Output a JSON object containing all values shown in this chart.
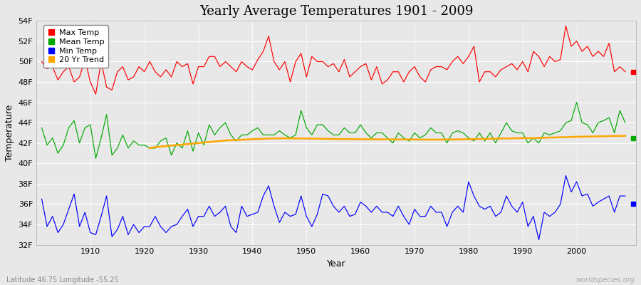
{
  "title": "Yearly Average Temperatures 1901 - 2009",
  "xlabel": "Year",
  "ylabel": "Temperature",
  "footnote_left": "Latitude 46.75 Longitude -55.25",
  "footnote_right": "worldspecies.org",
  "years": [
    1901,
    1902,
    1903,
    1904,
    1905,
    1906,
    1907,
    1908,
    1909,
    1910,
    1911,
    1912,
    1913,
    1914,
    1915,
    1916,
    1917,
    1918,
    1919,
    1920,
    1921,
    1922,
    1923,
    1924,
    1925,
    1926,
    1927,
    1928,
    1929,
    1930,
    1931,
    1932,
    1933,
    1934,
    1935,
    1936,
    1937,
    1938,
    1939,
    1940,
    1941,
    1942,
    1943,
    1944,
    1945,
    1946,
    1947,
    1948,
    1949,
    1950,
    1951,
    1952,
    1953,
    1954,
    1955,
    1956,
    1957,
    1958,
    1959,
    1960,
    1961,
    1962,
    1963,
    1964,
    1965,
    1966,
    1967,
    1968,
    1969,
    1970,
    1971,
    1972,
    1973,
    1974,
    1975,
    1976,
    1977,
    1978,
    1979,
    1980,
    1981,
    1982,
    1983,
    1984,
    1985,
    1986,
    1987,
    1988,
    1989,
    1990,
    1991,
    1992,
    1993,
    1994,
    1995,
    1996,
    1997,
    1998,
    1999,
    2000,
    2001,
    2002,
    2003,
    2004,
    2005,
    2006,
    2007,
    2008,
    2009
  ],
  "max_temp": [
    50.0,
    49.3,
    49.5,
    48.2,
    49.0,
    49.5,
    48.0,
    48.5,
    50.2,
    48.0,
    46.8,
    50.0,
    47.5,
    47.2,
    49.0,
    49.5,
    48.2,
    48.5,
    49.5,
    49.0,
    50.0,
    49.0,
    48.5,
    49.2,
    48.5,
    50.0,
    49.5,
    49.8,
    47.8,
    49.5,
    49.5,
    50.5,
    50.5,
    49.5,
    50.0,
    49.5,
    49.0,
    50.0,
    49.5,
    49.2,
    50.2,
    51.0,
    52.5,
    50.0,
    49.2,
    50.0,
    48.0,
    50.0,
    50.8,
    48.5,
    50.5,
    50.0,
    50.0,
    49.5,
    49.8,
    49.0,
    50.2,
    48.5,
    49.0,
    49.5,
    49.8,
    48.2,
    49.5,
    47.8,
    48.2,
    49.0,
    49.0,
    48.0,
    49.0,
    49.5,
    48.5,
    48.0,
    49.2,
    49.5,
    49.5,
    49.2,
    50.0,
    50.5,
    49.8,
    50.5,
    51.5,
    48.0,
    49.0,
    49.0,
    48.5,
    49.2,
    49.5,
    49.8,
    49.2,
    50.0,
    49.0,
    51.0,
    50.5,
    49.5,
    50.5,
    50.0,
    50.2,
    53.5,
    51.5,
    52.0,
    51.0,
    51.5,
    50.5,
    51.0,
    50.5,
    51.8,
    49.0,
    49.5,
    49.0
  ],
  "mean_temp": [
    43.5,
    41.8,
    42.5,
    41.0,
    41.8,
    43.5,
    44.2,
    42.0,
    43.5,
    43.8,
    40.5,
    42.5,
    44.8,
    40.8,
    41.5,
    42.8,
    41.5,
    42.2,
    41.8,
    41.8,
    41.5,
    41.5,
    42.2,
    42.5,
    40.8,
    42.0,
    41.5,
    43.2,
    41.2,
    43.0,
    41.8,
    43.8,
    42.8,
    43.5,
    44.0,
    42.8,
    42.2,
    42.8,
    42.8,
    43.2,
    43.5,
    42.8,
    42.8,
    42.8,
    43.2,
    42.8,
    42.5,
    42.8,
    45.2,
    43.5,
    42.8,
    43.8,
    43.8,
    43.2,
    42.8,
    42.8,
    43.5,
    43.0,
    43.0,
    43.8,
    43.0,
    42.5,
    43.0,
    43.0,
    42.5,
    42.0,
    43.0,
    42.5,
    42.2,
    43.0,
    42.5,
    42.8,
    43.5,
    43.0,
    43.0,
    42.0,
    43.0,
    43.2,
    43.0,
    42.5,
    42.2,
    43.0,
    42.2,
    43.0,
    42.0,
    43.0,
    44.0,
    43.2,
    43.0,
    43.0,
    42.0,
    42.5,
    42.0,
    43.0,
    42.8,
    43.0,
    43.2,
    44.0,
    44.2,
    46.0,
    44.0,
    43.8,
    43.0,
    44.0,
    44.2,
    44.5,
    43.0,
    45.2,
    44.0
  ],
  "min_temp": [
    36.5,
    33.8,
    34.8,
    33.2,
    34.0,
    35.5,
    37.0,
    33.8,
    35.2,
    33.2,
    33.0,
    34.8,
    36.8,
    32.8,
    33.5,
    34.8,
    33.0,
    34.0,
    33.2,
    33.8,
    33.8,
    34.8,
    33.8,
    33.2,
    33.8,
    34.0,
    34.8,
    35.5,
    33.8,
    34.8,
    34.8,
    35.8,
    34.8,
    35.2,
    35.8,
    33.8,
    33.2,
    35.8,
    34.8,
    35.0,
    35.2,
    36.8,
    37.8,
    35.8,
    34.2,
    35.2,
    34.8,
    35.0,
    36.8,
    34.8,
    33.8,
    35.0,
    37.0,
    36.8,
    35.8,
    35.2,
    35.8,
    34.8,
    35.0,
    36.2,
    35.8,
    35.2,
    35.8,
    35.2,
    35.2,
    34.8,
    35.8,
    34.8,
    34.0,
    35.5,
    34.8,
    34.8,
    35.8,
    35.2,
    35.2,
    33.8,
    35.2,
    35.8,
    35.2,
    38.2,
    36.8,
    35.8,
    35.5,
    35.8,
    34.8,
    35.2,
    36.8,
    35.8,
    35.2,
    36.2,
    33.8,
    34.8,
    32.5,
    35.2,
    34.8,
    35.2,
    36.0,
    38.8,
    37.2,
    38.2,
    36.8,
    37.0,
    35.8,
    36.2,
    36.5,
    36.8,
    35.2,
    36.8,
    36.8
  ],
  "trend_years": [
    1921,
    1922,
    1923,
    1924,
    1925,
    1926,
    1927,
    1928,
    1929,
    1930,
    1931,
    1932,
    1933,
    1934,
    1935,
    1936,
    1937,
    1938,
    1939,
    1940,
    1941,
    1942,
    1943,
    1944,
    1945,
    1946,
    1947,
    1948,
    1949,
    1950,
    1951,
    1952,
    1953,
    1954,
    1955,
    1956,
    1957,
    1958,
    1959,
    1960,
    1961,
    1962,
    1963,
    1964,
    1965,
    1966,
    1967,
    1968,
    1969,
    1970,
    1971,
    1972,
    1973,
    1974,
    1975,
    1976,
    1977,
    1978,
    1979,
    1980,
    1981,
    1982,
    1983,
    1984,
    1985,
    1986,
    1987,
    1988,
    1989,
    1990,
    1991,
    1992,
    1993,
    1994,
    1995,
    1996,
    1997,
    1998,
    1999,
    2000,
    2001,
    2002,
    2003,
    2004,
    2005,
    2006,
    2007,
    2008,
    2009
  ],
  "trend": [
    41.5,
    41.6,
    41.65,
    41.7,
    41.75,
    41.8,
    41.85,
    41.9,
    41.95,
    42.0,
    42.05,
    42.1,
    42.15,
    42.2,
    42.25,
    42.28,
    42.3,
    42.32,
    42.35,
    42.38,
    42.4,
    42.42,
    42.44,
    42.45,
    42.46,
    42.47,
    42.46,
    42.45,
    42.45,
    42.44,
    42.43,
    42.43,
    42.42,
    42.41,
    42.4,
    42.4,
    42.39,
    42.39,
    42.38,
    42.38,
    42.37,
    42.37,
    42.37,
    42.36,
    42.36,
    42.36,
    42.35,
    42.35,
    42.35,
    42.35,
    42.34,
    42.34,
    42.34,
    42.34,
    42.34,
    42.35,
    42.35,
    42.36,
    42.37,
    42.38,
    42.39,
    42.4,
    42.41,
    42.42,
    42.43,
    42.44,
    42.45,
    42.46,
    42.47,
    42.48,
    42.48,
    42.48,
    42.5,
    42.52,
    42.54,
    42.55,
    42.57,
    42.58,
    42.6,
    42.62,
    42.63,
    42.64,
    42.65,
    42.66,
    42.67,
    42.68,
    42.69,
    42.7,
    42.71
  ],
  "max_color": "#ff0000",
  "mean_color": "#00aa00",
  "min_color": "#0000ff",
  "trend_color": "#ffa500",
  "plot_bg_color": "#e8e8e8",
  "fig_bg_color": "#e8e8e8",
  "ylim": [
    32,
    54
  ],
  "yticks": [
    32,
    34,
    36,
    38,
    40,
    42,
    44,
    46,
    48,
    50,
    52,
    54
  ],
  "ytick_labels": [
    "32F",
    "34F",
    "36F",
    "38F",
    "40F",
    "42F",
    "44F",
    "46F",
    "48F",
    "50F",
    "52F",
    "54F"
  ],
  "xlim_start": 1900,
  "xlim_end": 2011,
  "xticks": [
    1910,
    1920,
    1930,
    1940,
    1950,
    1960,
    1970,
    1980,
    1990,
    2000
  ],
  "dot_x": 2010.5,
  "dot_max": 49.0,
  "dot_mean": 42.5,
  "dot_min": 36.0
}
